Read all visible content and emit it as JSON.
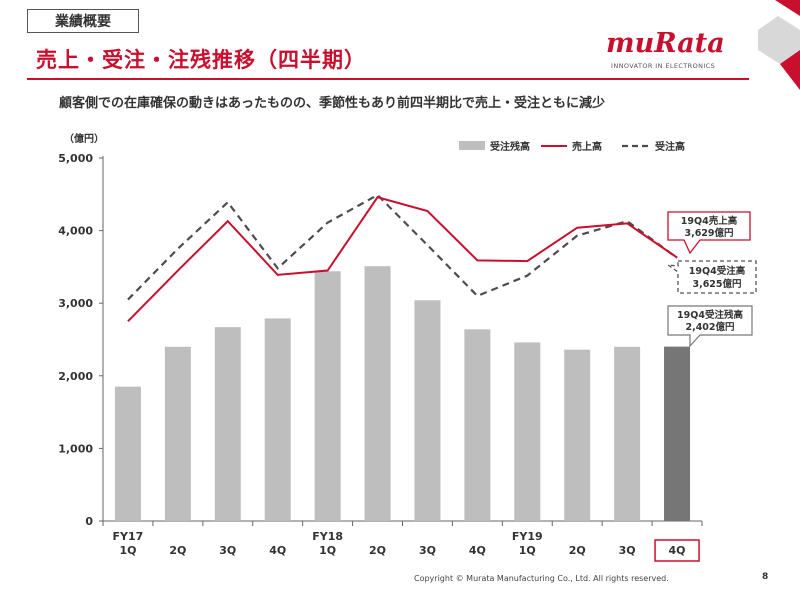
{
  "header": {
    "section_tag": "業績概要",
    "title": "売上・受注・注残推移（四半期）",
    "subtitle": "顧客側での在庫確保の動きはあったものの、季節性もあり前四半期比で売上・受注ともに減少"
  },
  "logo": {
    "wordmark": "muRata",
    "tagline": "INNOVATOR IN ELECTRONICS"
  },
  "footer": {
    "copyright": "Copyright © Murata Manufacturing Co., Ltd. All rights reserved.",
    "page_number": "8"
  },
  "colors": {
    "brand_red": "#c8102e",
    "backlog_bar": "#bebebe",
    "highlight_bar": "#767676",
    "orders_line": "#4d4d4d"
  },
  "chart_data": {
    "type": "bar",
    "unit_label": "（億円）",
    "categories": [
      [
        "FY17",
        "1Q"
      ],
      [
        "",
        "2Q"
      ],
      [
        "",
        "3Q"
      ],
      [
        "",
        "4Q"
      ],
      [
        "FY18",
        "1Q"
      ],
      [
        "",
        "2Q"
      ],
      [
        "",
        "3Q"
      ],
      [
        "",
        "4Q"
      ],
      [
        "FY19",
        "1Q"
      ],
      [
        "",
        "2Q"
      ],
      [
        "",
        "3Q"
      ],
      [
        "",
        "4Q"
      ]
    ],
    "ylim": [
      0,
      5000
    ],
    "yticks": [
      0,
      1000,
      2000,
      3000,
      4000,
      5000
    ],
    "ytick_labels": [
      "0",
      "1,000",
      "2,000",
      "3,000",
      "4,000",
      "5,000"
    ],
    "grid": false,
    "legend_position": "top-right",
    "highlight_index": 11,
    "series": [
      {
        "name": "受注残高",
        "type": "bar",
        "values": [
          1850,
          2400,
          2670,
          2790,
          3440,
          3510,
          3040,
          2640,
          2460,
          2360,
          2400,
          2402
        ]
      },
      {
        "name": "売上高",
        "type": "line",
        "style": "solid",
        "values": [
          2750,
          3450,
          4130,
          3390,
          3450,
          4460,
          4270,
          3590,
          3580,
          4040,
          4100,
          3629
        ]
      },
      {
        "name": "受注高",
        "type": "line",
        "style": "dashed",
        "values": [
          3050,
          3750,
          4390,
          3480,
          4110,
          4490,
          3800,
          3100,
          3380,
          3930,
          4130,
          3625
        ]
      }
    ],
    "annotations": [
      {
        "lines": [
          "19Q4売上高",
          "3,629億円"
        ],
        "style": "solid-red"
      },
      {
        "lines": [
          "19Q4受注高",
          "3,625億円"
        ],
        "style": "dashed-gray"
      },
      {
        "lines": [
          "19Q4受注残高",
          "2,402億円"
        ],
        "style": "solid-gray"
      }
    ]
  }
}
